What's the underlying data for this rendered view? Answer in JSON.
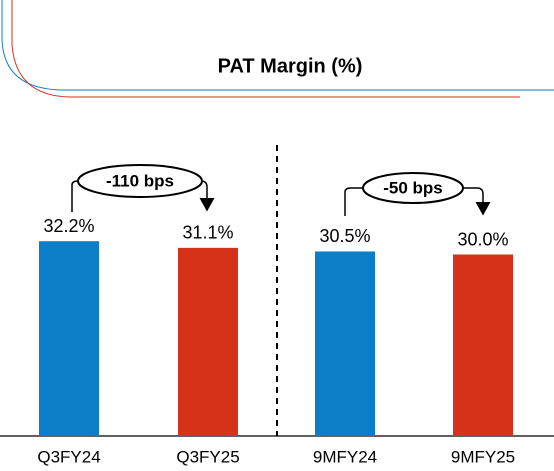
{
  "chart_data": {
    "type": "bar",
    "title": "PAT Margin (%)",
    "categories": [
      "Q3FY24",
      "Q3FY25",
      "9MFY24",
      "9MFY25"
    ],
    "values": [
      32.2,
      31.1,
      30.5,
      30.0
    ],
    "value_labels": [
      "32.2%",
      "31.1%",
      "30.5%",
      "30.0%"
    ],
    "colors": [
      "#0b7dc9",
      "#d6321a",
      "#0b7dc9",
      "#d6321a"
    ],
    "annotations": [
      "-110 bps",
      "-50 bps"
    ]
  }
}
